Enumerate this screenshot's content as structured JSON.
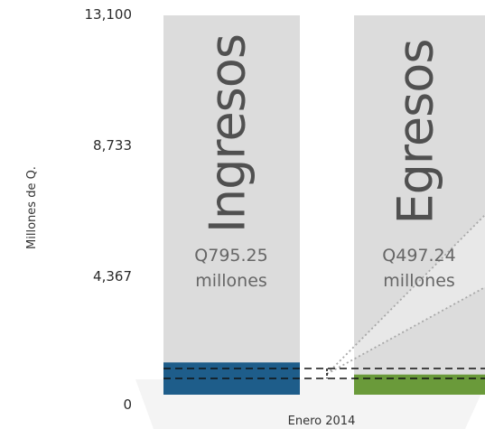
{
  "chart_data": {
    "type": "bar",
    "ylabel": "Millones de Q.",
    "xlabel": "Enero 2014",
    "ylim": [
      0,
      13100
    ],
    "yticks": [
      "0",
      "4,367",
      "8,733",
      "13,100"
    ],
    "ytick_values": [
      0,
      4367,
      8733,
      13100
    ],
    "categories": [
      "Ingresos",
      "Egresos"
    ],
    "values": [
      795.25,
      497.24
    ],
    "amount_labels": [
      "Q795.25",
      "Q497.24"
    ],
    "unit_label": "millones",
    "colors": [
      "#1e5d8a",
      "#6a9a3a"
    ],
    "background_bar_color": "#dcdcdc"
  }
}
